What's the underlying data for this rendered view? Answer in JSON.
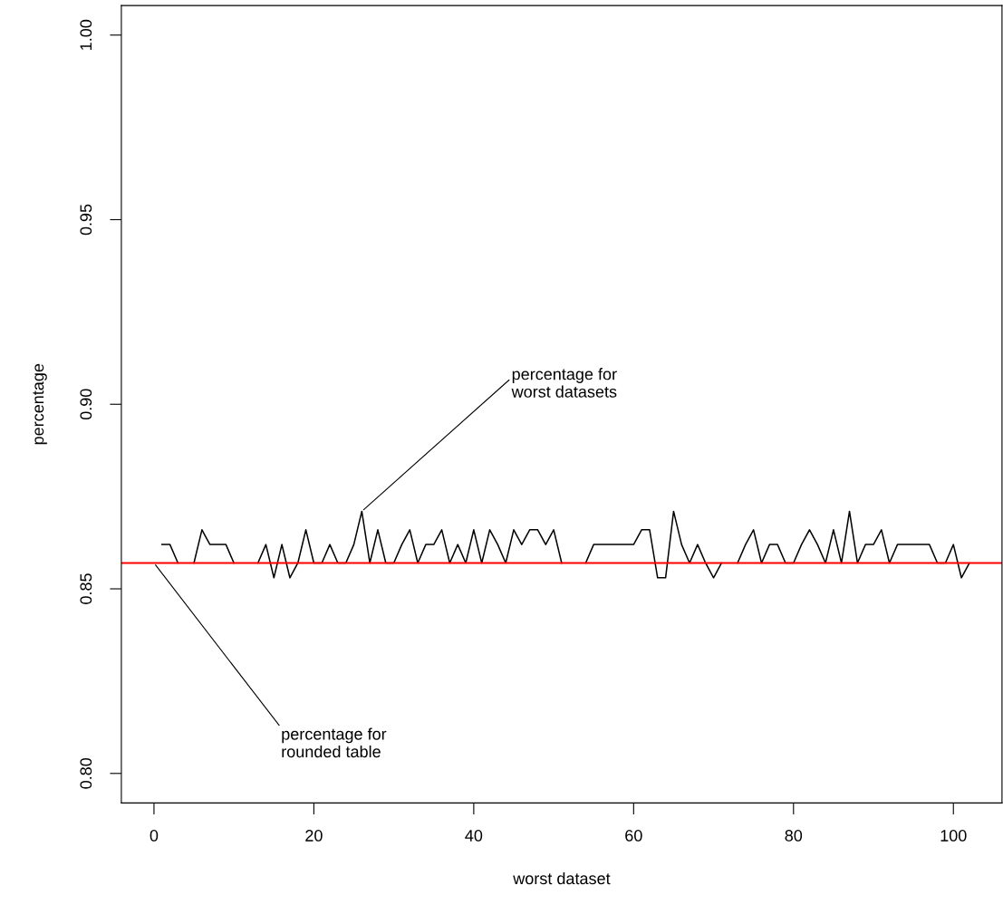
{
  "chart_data": {
    "type": "line",
    "xlabel": "worst dataset",
    "ylabel": "percentage",
    "x": [
      1,
      2,
      3,
      4,
      5,
      6,
      7,
      8,
      9,
      10,
      11,
      12,
      13,
      14,
      15,
      16,
      17,
      18,
      19,
      20,
      21,
      22,
      23,
      24,
      25,
      26,
      27,
      28,
      29,
      30,
      31,
      32,
      33,
      34,
      35,
      36,
      37,
      38,
      39,
      40,
      41,
      42,
      43,
      44,
      45,
      46,
      47,
      48,
      49,
      50,
      51,
      52,
      53,
      54,
      55,
      56,
      57,
      58,
      59,
      60,
      61,
      62,
      63,
      64,
      65,
      66,
      67,
      68,
      69,
      70,
      71,
      72,
      73,
      74,
      75,
      76,
      77,
      78,
      79,
      80,
      81,
      82,
      83,
      84,
      85,
      86,
      87,
      88,
      89,
      90,
      91,
      92,
      93,
      94,
      95,
      96,
      97,
      98,
      99,
      100,
      101,
      102
    ],
    "series": [
      {
        "color": "#000000",
        "values": [
          0.862,
          0.862,
          0.857,
          null,
          0.857,
          0.866,
          0.862,
          0.862,
          0.862,
          0.857,
          null,
          null,
          0.857,
          0.862,
          0.853,
          0.862,
          0.853,
          0.857,
          0.866,
          0.857,
          0.857,
          0.862,
          0.857,
          0.857,
          0.862,
          0.871,
          0.857,
          0.866,
          0.857,
          0.857,
          0.862,
          0.866,
          0.857,
          0.862,
          0.862,
          0.866,
          0.857,
          0.862,
          0.857,
          0.866,
          0.857,
          0.866,
          0.862,
          0.857,
          0.866,
          0.862,
          0.866,
          0.866,
          0.862,
          0.866,
          0.857,
          null,
          null,
          0.857,
          0.862,
          0.862,
          0.862,
          0.862,
          0.862,
          0.862,
          0.866,
          0.866,
          0.853,
          0.853,
          0.871,
          0.862,
          0.857,
          0.862,
          0.857,
          0.853,
          0.857,
          null,
          0.857,
          0.862,
          0.866,
          0.857,
          0.862,
          0.862,
          0.857,
          0.857,
          0.862,
          0.866,
          0.862,
          0.857,
          0.866,
          0.857,
          0.871,
          0.857,
          0.862,
          0.862,
          0.866,
          0.857,
          0.862,
          0.862,
          0.862,
          0.862,
          0.862,
          0.857,
          0.857,
          0.862,
          0.853,
          0.857
        ]
      }
    ],
    "ref_lines": [
      {
        "axis": "y",
        "value": 0.857,
        "color": "#ff0000"
      }
    ],
    "annotations": [
      {
        "text": "percentage for\nworst datasets",
        "x": 26,
        "y": 0.871
      },
      {
        "text": "percentage for\nrounded table",
        "x": 0,
        "y": 0.857
      }
    ],
    "xlim": [
      -4.08,
      106.08
    ],
    "xticks": [
      0,
      20,
      40,
      60,
      80,
      100
    ],
    "ylim": [
      0.792,
      1.008
    ],
    "yticks": [
      {
        "value": 0.8,
        "label": "0.80"
      },
      {
        "value": 0.85,
        "label": "0.85"
      },
      {
        "value": 0.9,
        "label": "0.90"
      },
      {
        "value": 0.95,
        "label": "0.95"
      },
      {
        "value": 1.0,
        "label": "1.00"
      }
    ],
    "grid": false,
    "legend": false,
    "marker": "none",
    "line_style": "solid"
  }
}
